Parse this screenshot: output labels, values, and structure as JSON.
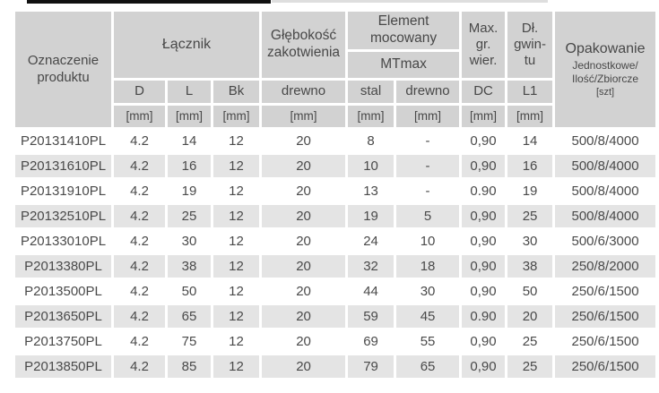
{
  "colors": {
    "header_bg": "#d2d2d2",
    "alt_row_bg": "#e4e4e4",
    "text": "#4a4a4a",
    "scan_bar": "#111111"
  },
  "table": {
    "header": {
      "product": [
        "Oznaczenie",
        "produktu"
      ],
      "lacznik": "Łącznik",
      "glebokosc": [
        "Głębokość",
        "zakotwienia"
      ],
      "element": [
        "Element",
        "mocowany"
      ],
      "mtmax": "MTmax",
      "max_gr": [
        "Max.",
        "gr.",
        "wier."
      ],
      "dl_gwintu": [
        "Dł.",
        "gwin-",
        "tu"
      ],
      "opakowanie": {
        "title": "Opakowanie",
        "sub1": "Jednostkowe/",
        "sub2": "Ilość/Zbiorcze",
        "sub3": "[szt]"
      },
      "sub": [
        "D",
        "L",
        "Bk",
        "drewno",
        "stal",
        "drewno",
        "DC",
        "L1"
      ],
      "units": [
        "[mm]",
        "[mm]",
        "[mm]",
        "[mm]",
        "[mm]",
        "[mm]",
        "[mm]",
        "[mm]"
      ]
    },
    "rows": [
      [
        "P20131410PL",
        "4.2",
        "14",
        "12",
        "20",
        "8",
        "-",
        "0,90",
        "14",
        "500/8/4000"
      ],
      [
        "P20131610PL",
        "4.2",
        "16",
        "12",
        "20",
        "10",
        "-",
        "0,90",
        "16",
        "500/8/4000"
      ],
      [
        "P20131910PL",
        "4.2",
        "19",
        "12",
        "20",
        "13",
        "-",
        "0.90",
        "19",
        "500/8/4000"
      ],
      [
        "P20132510PL",
        "4.2",
        "25",
        "12",
        "20",
        "19",
        "5",
        "0,90",
        "25",
        "500/8/4000"
      ],
      [
        "P20133010PL",
        "4.2",
        "30",
        "12",
        "20",
        "24",
        "10",
        "0,90",
        "30",
        "500/6/3000"
      ],
      [
        "P2013380PL",
        "4.2",
        "38",
        "12",
        "20",
        "32",
        "18",
        "0,90",
        "38",
        "250/8/2000"
      ],
      [
        "P2013500PL",
        "4.2",
        "50",
        "12",
        "20",
        "44",
        "30",
        "0,90",
        "50",
        "250/6/1500"
      ],
      [
        "P2013650PL",
        "4.2",
        "65",
        "12",
        "20",
        "59",
        "45",
        "0.90",
        "20",
        "250/6/1500"
      ],
      [
        "P2013750PL",
        "4.2",
        "75",
        "12",
        "20",
        "69",
        "55",
        "0,90",
        "25",
        "250/6/1500"
      ],
      [
        "P2013850PL",
        "4.2",
        "85",
        "12",
        "20",
        "79",
        "65",
        "0,90",
        "25",
        "250/6/1500"
      ]
    ]
  }
}
